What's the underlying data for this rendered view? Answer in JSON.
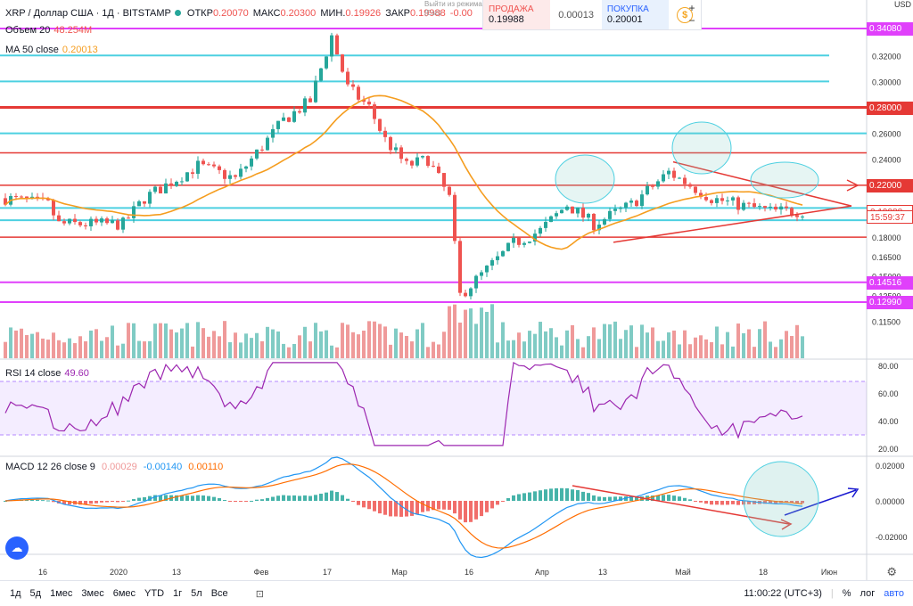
{
  "header": {
    "symbol": "XRP / Доллар США · 1Д · BITSTAMP",
    "open_k": "ОТКР",
    "open": "0.20070",
    "high_k": "МАКС",
    "high": "0.20300",
    "low_k": "МИН.",
    "low": "0.19926",
    "close_k": "ЗАКР",
    "close": "0.19988",
    "change": "-0.00",
    "tooltip": "Выйти из режима (Esc)"
  },
  "volume_label": {
    "name": "Объем 20",
    "value": "48.254M"
  },
  "ma_label": {
    "name": "MA 50 close",
    "value": "0.20013"
  },
  "rsi_label": {
    "name": "RSI 14 close",
    "value": "49.60"
  },
  "macd_label": {
    "name": "MACD 12 26 close 9",
    "v1": "0.00029",
    "v2": "-0.00140",
    "v3": "0.00110"
  },
  "trade": {
    "sell_label": "ПРОДАЖА",
    "sell_price": "0.19988",
    "spread": "0.00013",
    "buy_label": "ПОКУПКА",
    "buy_price": "0.20001",
    "zoom_in": "+",
    "zoom_out": "−"
  },
  "currency": "USD",
  "price_axis": [
    "0.32000",
    "0.30000",
    "0.28000",
    "0.26000",
    "0.24000",
    "0.22000",
    "0.20000",
    "0.18000",
    "0.16500",
    "0.15000",
    "0.13500",
    "0.12990",
    "0.11500"
  ],
  "price_tags": [
    {
      "text": "0.34080",
      "color": "#e040fb",
      "price": 0.3408
    },
    {
      "text": "0.28000",
      "color": "#e53935",
      "price": 0.28
    },
    {
      "text": "0.22000",
      "color": "#e53935",
      "price": 0.22
    },
    {
      "text": "0.19988",
      "color": "#ffffff",
      "price": 0.19988
    },
    {
      "text": "15:59:37",
      "color": "#ffffff",
      "price": 0.196
    },
    {
      "text": "0.14516",
      "color": "#e040fb",
      "price": 0.14516
    },
    {
      "text": "0.12990",
      "color": "#e040fb",
      "price": 0.1299
    }
  ],
  "rsi_axis": [
    "80.00",
    "60.00",
    "40.00",
    "20.00"
  ],
  "macd_axis": [
    "0.02000",
    "0.00000",
    "-0.02000"
  ],
  "time_axis": [
    "16",
    "2020",
    "13",
    "Фев",
    "17",
    "Мар",
    "16",
    "Апр",
    "13",
    "Май",
    "18",
    "Июн"
  ],
  "footer": {
    "timeframes": [
      "1д",
      "5д",
      "1мес",
      "3мес",
      "6мес",
      "YTD",
      "1г",
      "5л",
      "Все"
    ],
    "time": "11:00:22 (UTC+3)",
    "percent": "%",
    "log": "лог",
    "auto": "авто"
  },
  "colors": {
    "up": "#26a69a",
    "down": "#ef5350",
    "ma": "#f59d1f",
    "cyan": "#4dd0e1",
    "magenta": "#e040fb",
    "red": "#e53935"
  }
}
